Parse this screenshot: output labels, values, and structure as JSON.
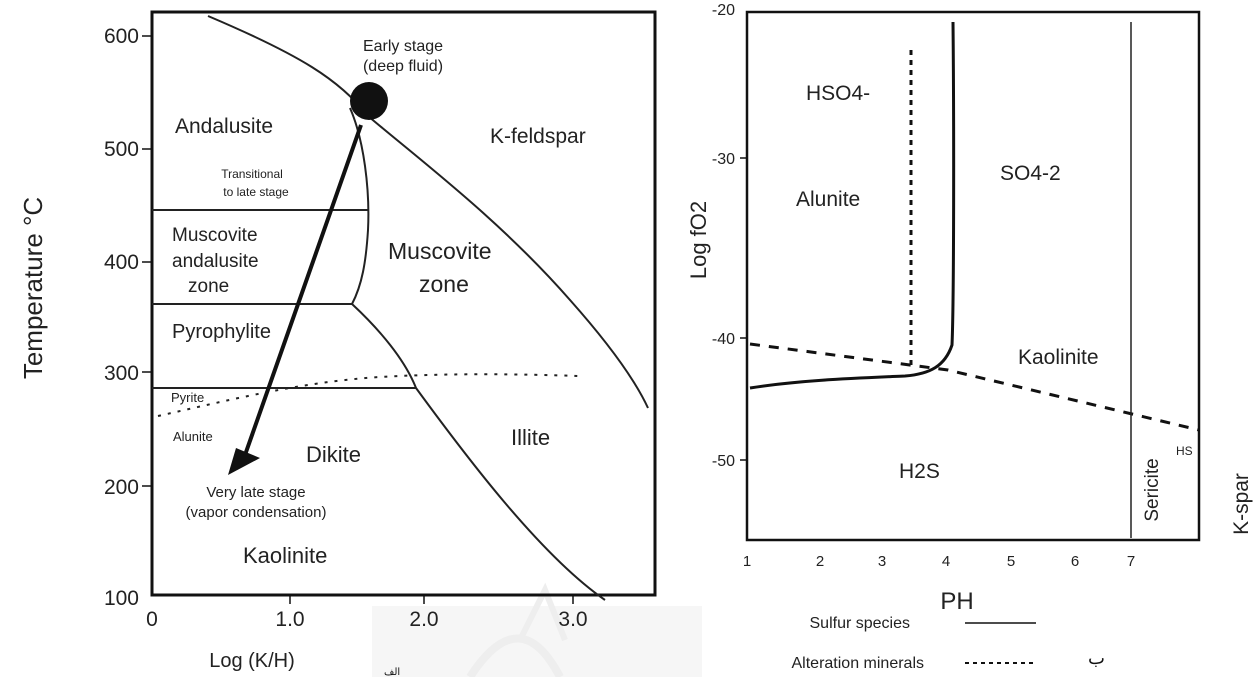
{
  "left_diagram": {
    "x_axis": {
      "label": "Log (K/H)",
      "ticks": [
        "0",
        "1.0",
        "2.0",
        "3.0"
      ]
    },
    "y_axis": {
      "label": "Temperature °C",
      "ticks": [
        "600",
        "500",
        "400",
        "300",
        "200",
        "100"
      ]
    },
    "fields": {
      "andalusite": "Andalusite",
      "k_feldspar": "K-feldspar",
      "muscovite_andalusite_1": "Muscovite",
      "muscovite_andalusite_2": "andalusite",
      "muscovite_andalusite_3": "zone",
      "muscovite_zone_1": "Muscovite",
      "muscovite_zone_2": "zone",
      "pyrophylite": "Pyrophylite",
      "dikite": "Dikite",
      "illite": "Illite",
      "kaolinite": "Kaolinite",
      "pyrite": "Pyrite",
      "alunite": "Alunite"
    },
    "annotations": {
      "early_1": "Early stage",
      "early_2": "(deep fluid)",
      "transitional_1": "Transitional",
      "transitional_2": "to late stage",
      "late_1": "Very late stage",
      "late_2": "(vapor condensation)"
    }
  },
  "right_diagram": {
    "x_axis": {
      "label": "PH",
      "ticks": [
        "1",
        "2",
        "3",
        "4",
        "5",
        "6",
        "7"
      ]
    },
    "y_axis": {
      "label": "Log fO2",
      "ticks": [
        "-20",
        "-30",
        "-40",
        "-50"
      ]
    },
    "fields": {
      "hso4": "HSO4-",
      "so4": "SO4-2",
      "alunite": "Alunite",
      "kaolinite": "Kaolinite",
      "h2s": "H2S",
      "sericite": "Sericite",
      "hs": "HS",
      "k_spar": "K-spar"
    },
    "legend": {
      "sulfur_species": "Sulfur species",
      "alteration_minerals": "Alteration minerals"
    }
  },
  "page_marks": {
    "right_mark": "ب",
    "bottom_mark": "الف"
  }
}
